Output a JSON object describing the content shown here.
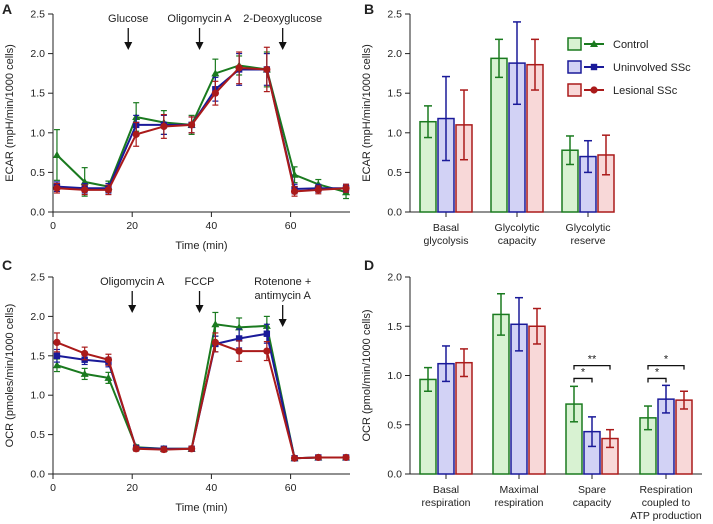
{
  "colors": {
    "Control": "#1a7a1f",
    "Uninvolved SSc": "#1a1a99",
    "Lesional SSc": "#aa1a1a",
    "Control_fill": "#d8f2d2",
    "Uninvolved SSc_fill": "#d2d2f5",
    "Lesional SSc_fill": "#f8d8d8"
  },
  "chart_data": [
    {
      "panel": "A",
      "type": "line",
      "xlabel": "Time (min)",
      "ylabel": "ECAR (mpH/min/1000 cells)",
      "xlim": [
        0,
        75
      ],
      "ylim": [
        0,
        2.5
      ],
      "xticks": [
        "0",
        "20",
        "40",
        "60"
      ],
      "yticks": [
        "0.0",
        "0.5",
        "1.0",
        "1.5",
        "2.0",
        "2.5"
      ],
      "x": [
        1,
        8,
        14,
        21,
        28,
        35,
        41,
        47,
        54,
        61,
        67,
        74
      ],
      "annotations": [
        {
          "label": "Glucose",
          "x": 19
        },
        {
          "label": "Oligomycin A",
          "x": 37
        },
        {
          "label": "2-Deoxyglucose",
          "x": 58
        }
      ],
      "series": [
        {
          "name": "Control",
          "marker": "triangle",
          "values": [
            0.72,
            0.38,
            0.32,
            1.2,
            1.13,
            1.1,
            1.75,
            1.85,
            1.8,
            0.47,
            0.35,
            0.25
          ],
          "errors": [
            0.32,
            0.18,
            0.07,
            0.18,
            0.15,
            0.12,
            0.18,
            0.12,
            0.22,
            0.1,
            0.06,
            0.08
          ]
        },
        {
          "name": "Uninvolved SSc",
          "marker": "square",
          "values": [
            0.32,
            0.3,
            0.3,
            1.1,
            1.1,
            1.1,
            1.55,
            1.8,
            1.8,
            0.29,
            0.3,
            0.3
          ],
          "errors": [
            0.06,
            0.06,
            0.06,
            0.12,
            0.12,
            0.1,
            0.15,
            0.2,
            0.2,
            0.06,
            0.05,
            0.05
          ]
        },
        {
          "name": "Lesional SSc",
          "marker": "circle",
          "values": [
            0.3,
            0.28,
            0.28,
            0.98,
            1.08,
            1.1,
            1.5,
            1.82,
            1.8,
            0.26,
            0.28,
            0.3
          ],
          "errors": [
            0.06,
            0.06,
            0.06,
            0.15,
            0.15,
            0.1,
            0.15,
            0.2,
            0.28,
            0.06,
            0.05,
            0.05
          ]
        }
      ]
    },
    {
      "panel": "B",
      "type": "bar",
      "ylabel": "ECAR (mpH/min/1000 cells)",
      "ylim": [
        0,
        2.5
      ],
      "yticks": [
        "0.0",
        "0.5",
        "1.0",
        "1.5",
        "2.0",
        "2.5"
      ],
      "categories": [
        [
          "Basal",
          "glycolysis"
        ],
        [
          "Glycolytic",
          "capacity"
        ],
        [
          "Glycolytic",
          "reserve"
        ]
      ],
      "legend": {
        "placement": "top-right",
        "entries": [
          "Control",
          "Uninvolved SSc",
          "Lesional SSc"
        ]
      },
      "series": [
        {
          "name": "Control",
          "values": [
            1.14,
            1.94,
            0.78
          ],
          "errors": [
            0.2,
            0.24,
            0.18
          ]
        },
        {
          "name": "Uninvolved SSc",
          "values": [
            1.18,
            1.88,
            0.7
          ],
          "errors": [
            0.53,
            0.52,
            0.2
          ]
        },
        {
          "name": "Lesional SSc",
          "values": [
            1.1,
            1.86,
            0.72
          ],
          "errors": [
            0.44,
            0.32,
            0.25
          ]
        }
      ]
    },
    {
      "panel": "C",
      "type": "line",
      "xlabel": "Time (min)",
      "ylabel": "OCR (pmoles/min/1000 cells)",
      "xlim": [
        0,
        75
      ],
      "ylim": [
        0,
        2.5
      ],
      "xticks": [
        "0",
        "20",
        "40",
        "60"
      ],
      "yticks": [
        "0.0",
        "0.5",
        "1.0",
        "1.5",
        "2.0",
        "2.5"
      ],
      "x": [
        1,
        8,
        14,
        21,
        28,
        35,
        41,
        47,
        54,
        61,
        67,
        74
      ],
      "annotations": [
        {
          "label": "Oligomycin A",
          "x": 20
        },
        {
          "label": "FCCP",
          "x": 37
        },
        {
          "label": "Rotenone +\nantimycin A",
          "x": 58
        }
      ],
      "series": [
        {
          "name": "Control",
          "marker": "triangle",
          "values": [
            1.38,
            1.27,
            1.22,
            0.34,
            0.32,
            0.32,
            1.9,
            1.86,
            1.88,
            0.2,
            0.21,
            0.21
          ],
          "errors": [
            0.08,
            0.07,
            0.07,
            0.03,
            0.03,
            0.03,
            0.15,
            0.12,
            0.12,
            0.02,
            0.02,
            0.02
          ]
        },
        {
          "name": "Uninvolved SSc",
          "marker": "square",
          "values": [
            1.5,
            1.45,
            1.42,
            0.33,
            0.32,
            0.32,
            1.65,
            1.72,
            1.78,
            0.2,
            0.21,
            0.21
          ],
          "errors": [
            0.08,
            0.06,
            0.06,
            0.03,
            0.03,
            0.03,
            0.1,
            0.12,
            0.12,
            0.02,
            0.02,
            0.02
          ]
        },
        {
          "name": "Lesional SSc",
          "marker": "circle",
          "values": [
            1.67,
            1.53,
            1.45,
            0.32,
            0.31,
            0.32,
            1.67,
            1.56,
            1.56,
            0.2,
            0.21,
            0.21
          ],
          "errors": [
            0.12,
            0.08,
            0.07,
            0.03,
            0.03,
            0.03,
            0.12,
            0.13,
            0.12,
            0.02,
            0.02,
            0.02
          ]
        }
      ]
    },
    {
      "panel": "D",
      "type": "bar",
      "ylabel": "OCR (pmol/min/1000 cells)",
      "ylim": [
        0,
        2.0
      ],
      "yticks": [
        "0.0",
        "0.5",
        "1.0",
        "1.5",
        "2.0"
      ],
      "categories": [
        [
          "Basal",
          "respiration"
        ],
        [
          "Maximal",
          "respiration"
        ],
        [
          "Spare",
          "capacity"
        ],
        [
          "Respiration",
          "coupled to",
          "ATP production"
        ]
      ],
      "series": [
        {
          "name": "Control",
          "values": [
            0.96,
            1.62,
            0.71,
            0.57
          ],
          "errors": [
            0.12,
            0.21,
            0.18,
            0.12
          ]
        },
        {
          "name": "Uninvolved SSc",
          "values": [
            1.12,
            1.52,
            0.43,
            0.76
          ],
          "errors": [
            0.18,
            0.27,
            0.15,
            0.14
          ]
        },
        {
          "name": "Lesional SSc",
          "values": [
            1.13,
            1.5,
            0.36,
            0.75
          ],
          "errors": [
            0.14,
            0.18,
            0.09,
            0.09
          ]
        }
      ],
      "significance": [
        {
          "category": 2,
          "from": 0,
          "to": 1,
          "label": "*",
          "y": 0.97
        },
        {
          "category": 2,
          "from": 0,
          "to": 2,
          "label": "**",
          "y": 1.1
        },
        {
          "category": 3,
          "from": 0,
          "to": 1,
          "label": "*",
          "y": 0.97
        },
        {
          "category": 3,
          "from": 0,
          "to": 2,
          "label": "*",
          "y": 1.1
        }
      ]
    }
  ]
}
